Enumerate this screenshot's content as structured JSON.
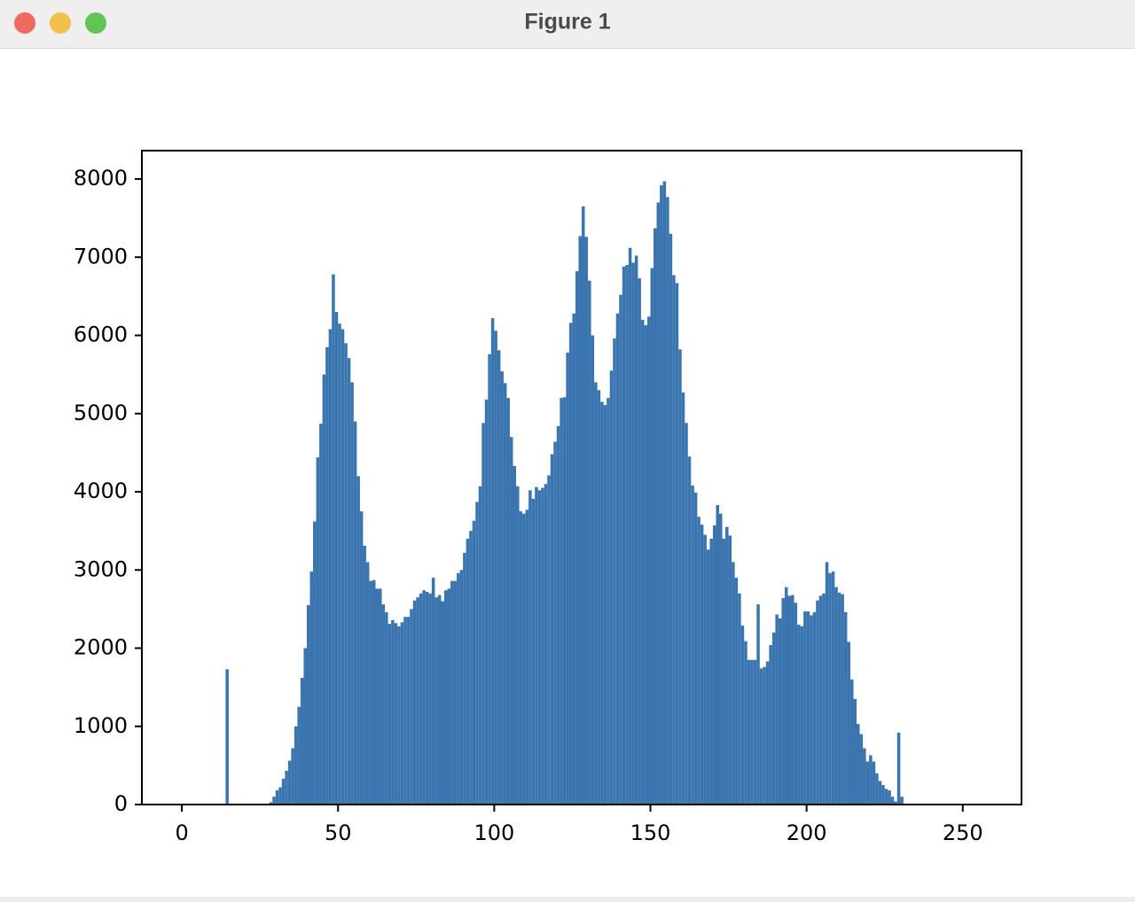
{
  "window": {
    "title": "Figure 1"
  },
  "chart_data": {
    "type": "histogram",
    "color": "#3b75af",
    "bins": [
      0,
      1,
      2,
      3,
      4,
      5,
      6,
      7,
      8,
      9,
      10,
      11,
      12,
      13,
      14,
      15,
      16,
      17,
      18,
      19,
      20,
      21,
      22,
      23,
      24,
      25,
      26,
      27,
      28,
      29,
      30,
      31,
      32,
      33,
      34,
      35,
      36,
      37,
      38,
      39,
      40,
      41,
      42,
      43,
      44,
      45,
      46,
      47,
      48,
      49,
      50,
      51,
      52,
      53,
      54,
      55,
      56,
      57,
      58,
      59,
      60,
      61,
      62,
      63,
      64,
      65,
      66,
      67,
      68,
      69,
      70,
      71,
      72,
      73,
      74,
      75,
      76,
      77,
      78,
      79,
      80,
      81,
      82,
      83,
      84,
      85,
      86,
      87,
      88,
      89,
      90,
      91,
      92,
      93,
      94,
      95,
      96,
      97,
      98,
      99,
      100,
      101,
      102,
      103,
      104,
      105,
      106,
      107,
      108,
      109,
      110,
      111,
      112,
      113,
      114,
      115,
      116,
      117,
      118,
      119,
      120,
      121,
      122,
      123,
      124,
      125,
      126,
      127,
      128,
      129,
      130,
      131,
      132,
      133,
      134,
      135,
      136,
      137,
      138,
      139,
      140,
      141,
      142,
      143,
      144,
      145,
      146,
      147,
      148,
      149,
      150,
      151,
      152,
      153,
      154,
      155,
      156,
      157,
      158,
      159,
      160,
      161,
      162,
      163,
      164,
      165,
      166,
      167,
      168,
      169,
      170,
      171,
      172,
      173,
      174,
      175,
      176,
      177,
      178,
      179,
      180,
      181,
      182,
      183,
      184,
      185,
      186,
      187,
      188,
      189,
      190,
      191,
      192,
      193,
      194,
      195,
      196,
      197,
      198,
      199,
      200,
      201,
      202,
      203,
      204,
      205,
      206,
      207,
      208,
      209,
      210,
      211,
      212,
      213,
      214,
      215,
      216,
      217,
      218,
      219,
      220,
      221,
      222,
      223,
      224,
      225,
      226,
      227,
      228,
      229,
      230,
      231,
      232,
      233,
      234,
      235,
      236,
      237,
      238,
      239,
      240,
      241,
      242,
      243,
      244,
      245,
      246,
      247,
      248,
      249,
      250,
      251,
      252,
      253,
      254,
      255,
      256
    ],
    "values": [
      0,
      0,
      0,
      0,
      0,
      0,
      0,
      0,
      0,
      0,
      0,
      0,
      0,
      0,
      1730,
      0,
      0,
      0,
      0,
      0,
      0,
      0,
      0,
      0,
      0,
      0,
      0,
      0,
      30,
      100,
      180,
      220,
      330,
      430,
      560,
      720,
      1000,
      1250,
      1620,
      2000,
      2550,
      2980,
      3620,
      4440,
      4870,
      5500,
      5850,
      6080,
      6780,
      6300,
      6150,
      6080,
      5900,
      5710,
      5400,
      4900,
      4200,
      3750,
      3310,
      3100,
      2860,
      2870,
      2760,
      2760,
      2560,
      2460,
      2310,
      2360,
      2320,
      2280,
      2330,
      2400,
      2400,
      2500,
      2610,
      2650,
      2700,
      2740,
      2720,
      2700,
      2900,
      2650,
      2680,
      2600,
      2740,
      2760,
      2860,
      2860,
      2960,
      3000,
      3220,
      3400,
      3500,
      3630,
      3870,
      4070,
      4880,
      5180,
      5760,
      6220,
      6060,
      5810,
      5540,
      5390,
      5200,
      4700,
      4330,
      4070,
      3750,
      3720,
      3770,
      4020,
      3910,
      4060,
      4020,
      4050,
      4100,
      4210,
      4480,
      4640,
      4840,
      5200,
      5210,
      5780,
      6160,
      6280,
      6820,
      7270,
      7650,
      7260,
      6700,
      6000,
      5400,
      5300,
      5150,
      5110,
      5200,
      5550,
      5960,
      6280,
      6520,
      6880,
      6900,
      7120,
      6930,
      7020,
      6730,
      6200,
      6130,
      6240,
      6860,
      7370,
      7700,
      7920,
      7970,
      7770,
      7300,
      6770,
      6670,
      5820,
      5270,
      4880,
      4450,
      4080,
      3990,
      3680,
      3580,
      3450,
      3260,
      3400,
      3570,
      3830,
      3720,
      3400,
      3550,
      3440,
      3100,
      2900,
      2700,
      2290,
      2090,
      1850,
      1850,
      1850,
      2560,
      1740,
      1760,
      1830,
      2040,
      2200,
      2430,
      2380,
      2640,
      2780,
      2670,
      2680,
      2580,
      2300,
      2280,
      2470,
      2470,
      2420,
      2460,
      2610,
      2670,
      2700,
      3100,
      2960,
      2980,
      2780,
      2710,
      2690,
      2460,
      2080,
      1600,
      1350,
      1030,
      900,
      720,
      550,
      630,
      550,
      400,
      300,
      250,
      200,
      180,
      100,
      40,
      920,
      100,
      0,
      0,
      0,
      0,
      0,
      0,
      0,
      0,
      0,
      0,
      0,
      0,
      0,
      0,
      0,
      0,
      0,
      0,
      0,
      0,
      0,
      0,
      0,
      0,
      0
    ],
    "xlim": [
      -12.8,
      268.8
    ],
    "xticks": [
      0,
      50,
      100,
      150,
      200,
      250
    ],
    "ylim": [
      0,
      8363
    ],
    "yticks": [
      0,
      1000,
      2000,
      3000,
      4000,
      5000,
      6000,
      7000,
      8000
    ]
  }
}
